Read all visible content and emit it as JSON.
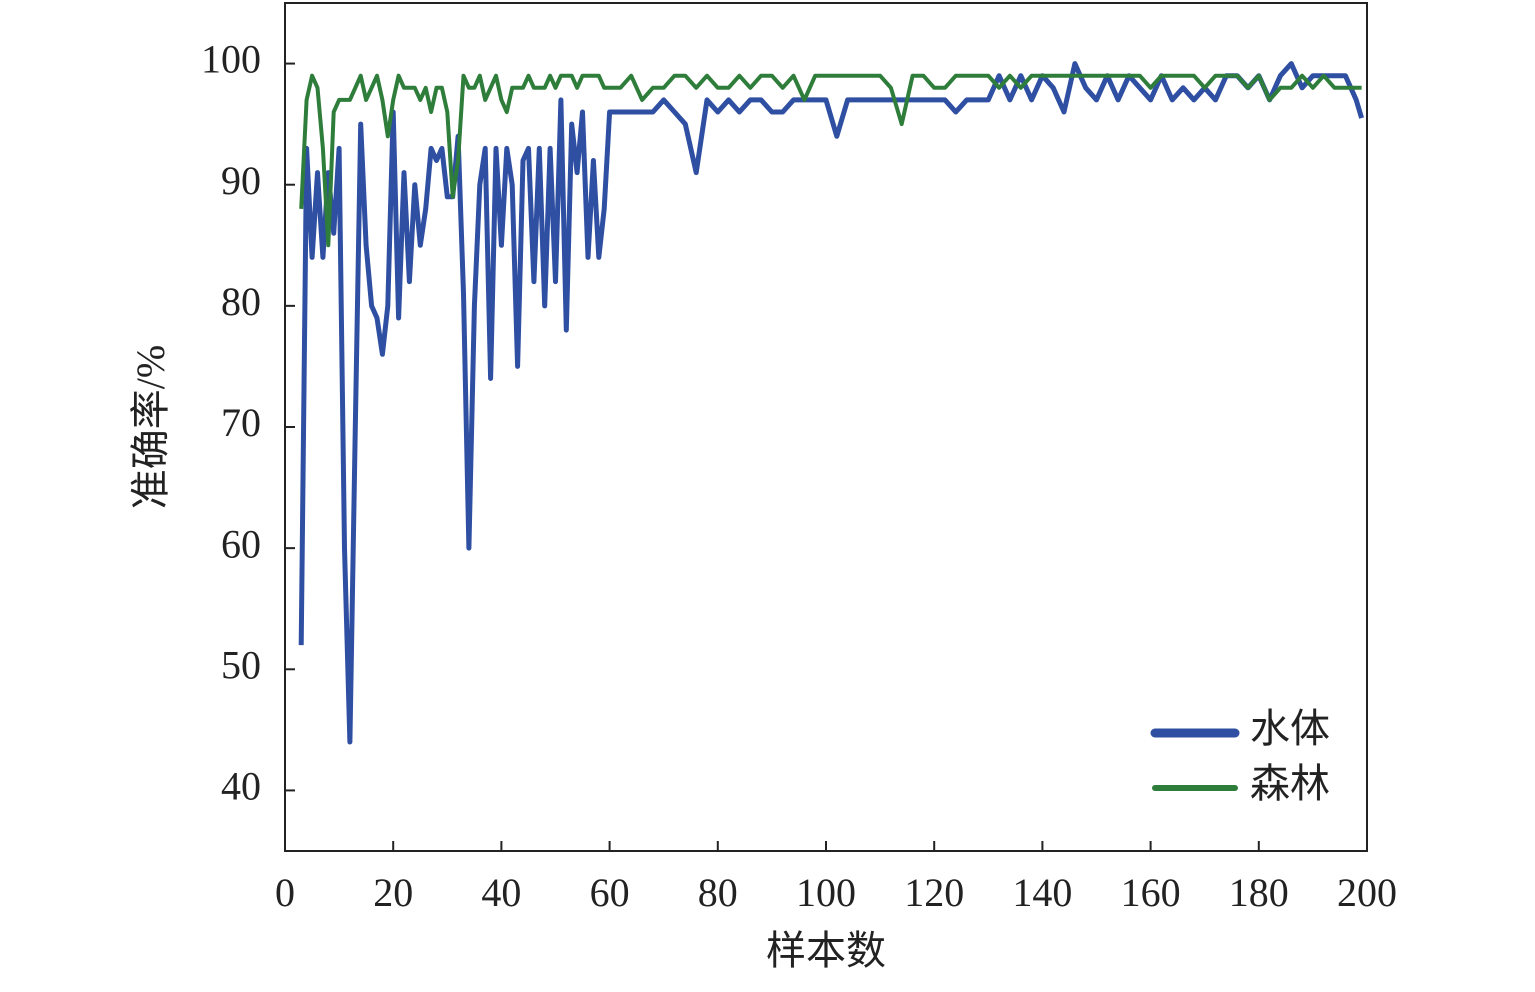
{
  "chart_data": {
    "type": "line",
    "xlabel": "样本数",
    "ylabel": "准确率/%",
    "x": [
      3,
      4,
      5,
      6,
      7,
      8,
      9,
      10,
      11,
      12,
      13,
      14,
      15,
      16,
      17,
      18,
      19,
      20,
      21,
      22,
      23,
      24,
      25,
      26,
      27,
      28,
      29,
      30,
      31,
      32,
      33,
      34,
      35,
      36,
      37,
      38,
      39,
      40,
      41,
      42,
      43,
      44,
      45,
      46,
      47,
      48,
      49,
      50,
      51,
      52,
      53,
      54,
      55,
      56,
      57,
      58,
      59,
      60,
      62,
      64,
      66,
      68,
      70,
      72,
      74,
      76,
      78,
      80,
      82,
      84,
      86,
      88,
      90,
      92,
      94,
      96,
      98,
      100,
      102,
      104,
      106,
      108,
      110,
      112,
      114,
      116,
      118,
      120,
      122,
      124,
      126,
      128,
      130,
      132,
      134,
      136,
      138,
      140,
      142,
      144,
      146,
      148,
      150,
      152,
      154,
      156,
      158,
      160,
      162,
      164,
      166,
      168,
      170,
      172,
      174,
      176,
      178,
      180,
      182,
      184,
      186,
      188,
      190,
      192,
      194,
      196,
      198,
      199
    ],
    "series": [
      {
        "name": "水体",
        "color": "#2f4fa2",
        "values": [
          52,
          93,
          84,
          91,
          84,
          91,
          86,
          93,
          60,
          44,
          70,
          95,
          85,
          80,
          79,
          76,
          80,
          96,
          79,
          91,
          82,
          90,
          85,
          88,
          93,
          92,
          93,
          89,
          89,
          94,
          81,
          60,
          80,
          90,
          93,
          74,
          93,
          85,
          93,
          90,
          75,
          92,
          93,
          82,
          93,
          80,
          93,
          82,
          97,
          78,
          95,
          91,
          96,
          84,
          92,
          84,
          88,
          96,
          96,
          96,
          96,
          96,
          97,
          96,
          95,
          91,
          97,
          96,
          97,
          96,
          97,
          97,
          96,
          96,
          97,
          97,
          97,
          97,
          94,
          97,
          97,
          97,
          97,
          97,
          97,
          97,
          97,
          97,
          97,
          96,
          97,
          97,
          97,
          99,
          97,
          99,
          97,
          99,
          98,
          96,
          100,
          98,
          97,
          99,
          97,
          99,
          98,
          97,
          99,
          97,
          98,
          97,
          98,
          97,
          99,
          99,
          98,
          99,
          97,
          99,
          100,
          98,
          99,
          99,
          99,
          99,
          97,
          95.5
        ]
      },
      {
        "name": "森林",
        "color": "#2e7d3a",
        "values": [
          88,
          97,
          99,
          98,
          93,
          85,
          96,
          97,
          97,
          97,
          98,
          99,
          97,
          98,
          99,
          97,
          94,
          97,
          99,
          98,
          98,
          98,
          97,
          98,
          96,
          98,
          98,
          96,
          89,
          92,
          99,
          98,
          98,
          99,
          97,
          98,
          99,
          97,
          96,
          98,
          98,
          98,
          99,
          98,
          98,
          98,
          99,
          98,
          99,
          99,
          99,
          98,
          99,
          99,
          99,
          99,
          98,
          98,
          98,
          99,
          97,
          98,
          98,
          99,
          99,
          98,
          99,
          98,
          98,
          99,
          98,
          99,
          99,
          98,
          99,
          97,
          99,
          99,
          99,
          99,
          99,
          99,
          99,
          98,
          95,
          99,
          99,
          98,
          98,
          99,
          99,
          99,
          99,
          98,
          99,
          98,
          99,
          99,
          99,
          99,
          99,
          99,
          99,
          99,
          99,
          99,
          99,
          98,
          99,
          99,
          99,
          99,
          98,
          99,
          99,
          99,
          98,
          99,
          97,
          98,
          98,
          99,
          98,
          99,
          98,
          98,
          98,
          98
        ]
      }
    ],
    "xlim": [
      0,
      200
    ],
    "xticks": [
      0,
      20,
      40,
      60,
      80,
      100,
      120,
      140,
      160,
      180,
      200
    ],
    "ylim": [
      35,
      105
    ],
    "yticks": [
      40,
      50,
      60,
      70,
      80,
      90,
      100
    ],
    "legend": "lower right"
  }
}
